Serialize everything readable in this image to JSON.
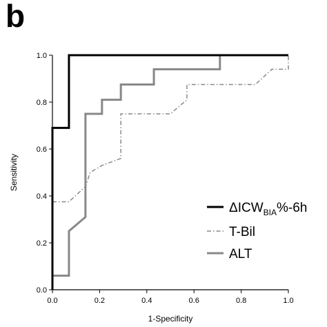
{
  "panel_label": "b",
  "chart_data": {
    "type": "line",
    "xlabel": "1-Specificity",
    "ylabel": "Sensitivity",
    "xlim": [
      0.0,
      1.0
    ],
    "ylim": [
      0.0,
      1.0
    ],
    "x_ticks": [
      "0.0",
      "0.2",
      "0.4",
      "0.6",
      "0.8",
      "1.0"
    ],
    "y_ticks": [
      "0.0",
      "0.2",
      "0.4",
      "0.6",
      "0.8",
      "1.0"
    ],
    "grid": false,
    "legend_position": "bottom-right",
    "legend": {
      "s1_main": "ΔICW",
      "s1_sub": "BIA",
      "s1_tail": "%-6h",
      "s2": "T-Bil",
      "s3": "ALT"
    },
    "series": [
      {
        "name": "ΔICWBIA%-6h",
        "color": "#000000",
        "style": "solid",
        "points": [
          [
            0,
            0
          ],
          [
            0,
            0.69
          ],
          [
            0.07,
            0.69
          ],
          [
            0.07,
            1.0
          ],
          [
            1.0,
            1.0
          ]
        ]
      },
      {
        "name": "T-Bil",
        "color": "#888888",
        "style": "dashdot",
        "points": [
          [
            0,
            0.375
          ],
          [
            0.07,
            0.375
          ],
          [
            0.14,
            0.44
          ],
          [
            0.16,
            0.5
          ],
          [
            0.21,
            0.53
          ],
          [
            0.29,
            0.56
          ],
          [
            0.29,
            0.75
          ],
          [
            0.5,
            0.75
          ],
          [
            0.57,
            0.81
          ],
          [
            0.57,
            0.875
          ],
          [
            0.86,
            0.875
          ],
          [
            0.93,
            0.94
          ],
          [
            1.0,
            0.94
          ],
          [
            1.0,
            1.0
          ]
        ]
      },
      {
        "name": "ALT",
        "color": "#888888",
        "style": "solid",
        "points": [
          [
            0,
            0.0
          ],
          [
            0,
            0.06
          ],
          [
            0.07,
            0.06
          ],
          [
            0.07,
            0.25
          ],
          [
            0.14,
            0.31
          ],
          [
            0.14,
            0.75
          ],
          [
            0.21,
            0.75
          ],
          [
            0.21,
            0.81
          ],
          [
            0.29,
            0.81
          ],
          [
            0.29,
            0.875
          ],
          [
            0.43,
            0.875
          ],
          [
            0.43,
            0.94
          ],
          [
            0.71,
            0.94
          ],
          [
            0.71,
            1.0
          ],
          [
            1.0,
            1.0
          ]
        ]
      }
    ]
  }
}
